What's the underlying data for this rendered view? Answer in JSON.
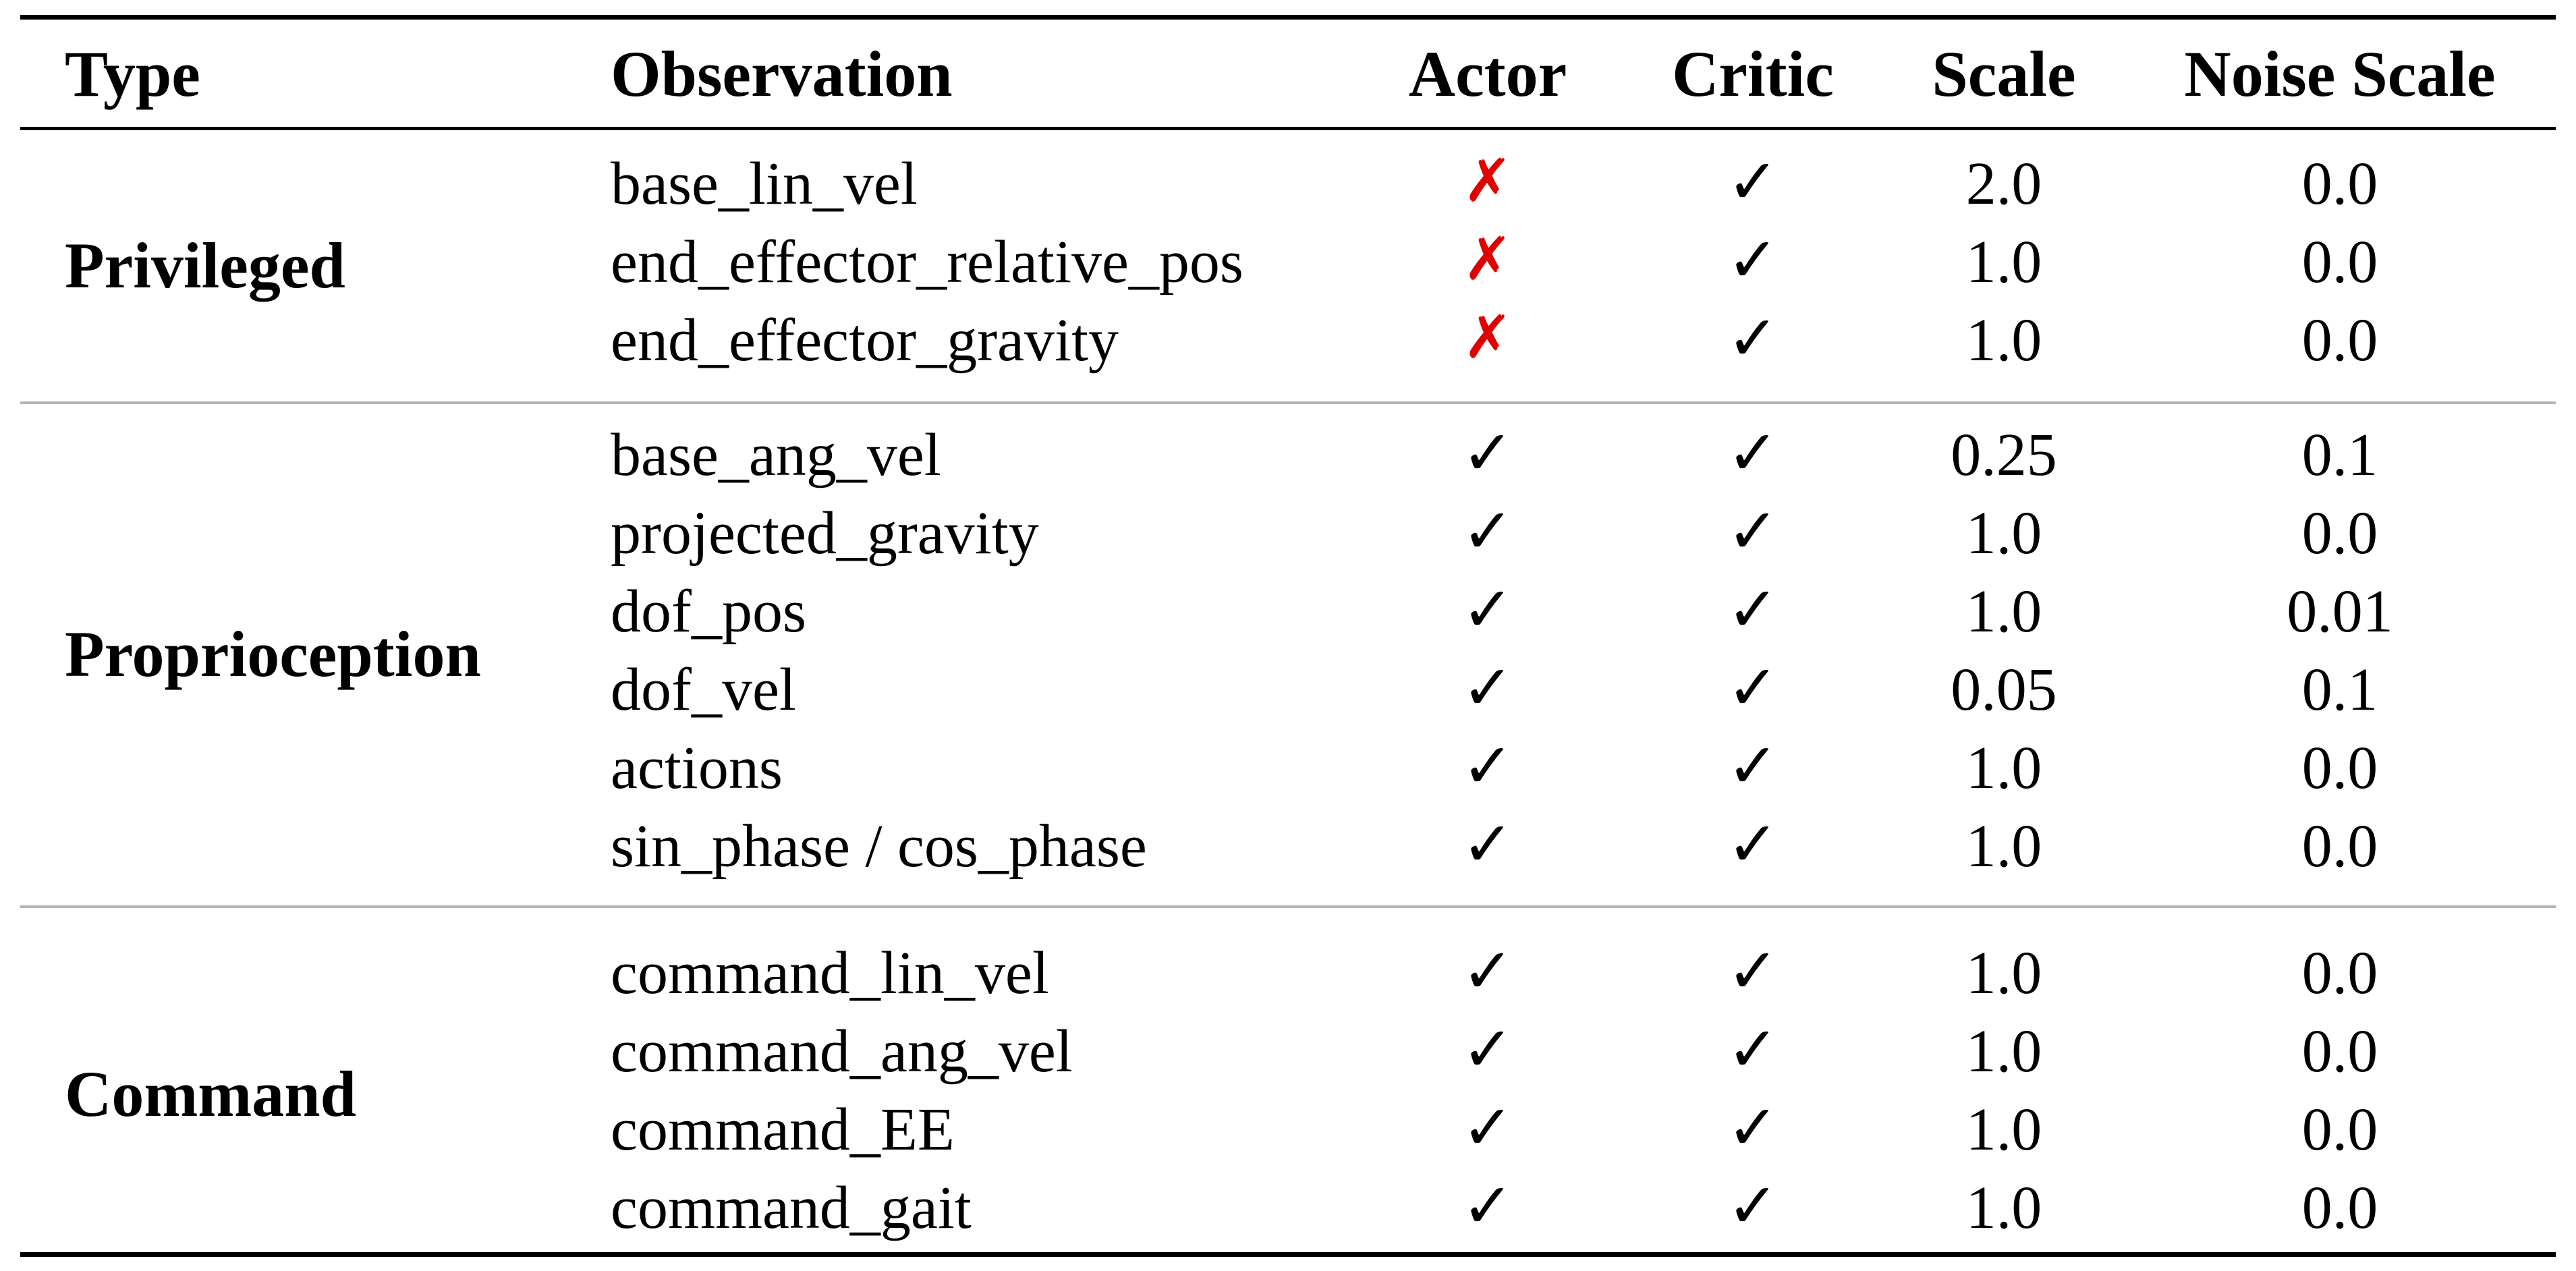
{
  "table": {
    "headers": {
      "type": "Type",
      "observation": "Observation",
      "actor": "Actor",
      "critic": "Critic",
      "scale": "Scale",
      "noise_scale": "Noise Scale"
    },
    "groups": [
      {
        "type": "Privileged",
        "rows": [
          {
            "observation": "base_lin_vel",
            "actor": "✗",
            "critic": "✓",
            "scale": "2.0",
            "noise_scale": "0.0"
          },
          {
            "observation": "end_effector_relative_pos",
            "actor": "✗",
            "critic": "✓",
            "scale": "1.0",
            "noise_scale": "0.0"
          },
          {
            "observation": "end_effector_gravity",
            "actor": "✗",
            "critic": "✓",
            "scale": "1.0",
            "noise_scale": "0.0"
          }
        ]
      },
      {
        "type": "Proprioception",
        "rows": [
          {
            "observation": "base_ang_vel",
            "actor": "✓",
            "critic": "✓",
            "scale": "0.25",
            "noise_scale": "0.1"
          },
          {
            "observation": "projected_gravity",
            "actor": "✓",
            "critic": "✓",
            "scale": "1.0",
            "noise_scale": "0.0"
          },
          {
            "observation": "dof_pos",
            "actor": "✓",
            "critic": "✓",
            "scale": "1.0",
            "noise_scale": "0.01"
          },
          {
            "observation": "dof_vel",
            "actor": "✓",
            "critic": "✓",
            "scale": "0.05",
            "noise_scale": "0.1"
          },
          {
            "observation": "actions",
            "actor": "✓",
            "critic": "✓",
            "scale": "1.0",
            "noise_scale": "0.0"
          },
          {
            "observation": "sin_phase / cos_phase",
            "actor": "✓",
            "critic": "✓",
            "scale": "1.0",
            "noise_scale": "0.0"
          }
        ]
      },
      {
        "type": "Command",
        "rows": [
          {
            "observation": "command_lin_vel",
            "actor": "✓",
            "critic": "✓",
            "scale": "1.0",
            "noise_scale": "0.0"
          },
          {
            "observation": "command_ang_vel",
            "actor": "✓",
            "critic": "✓",
            "scale": "1.0",
            "noise_scale": "0.0"
          },
          {
            "observation": "command_EE",
            "actor": "✓",
            "critic": "✓",
            "scale": "1.0",
            "noise_scale": "0.0"
          },
          {
            "observation": "command_gait",
            "actor": "✓",
            "critic": "✓",
            "scale": "1.0",
            "noise_scale": "0.0"
          }
        ]
      }
    ]
  }
}
